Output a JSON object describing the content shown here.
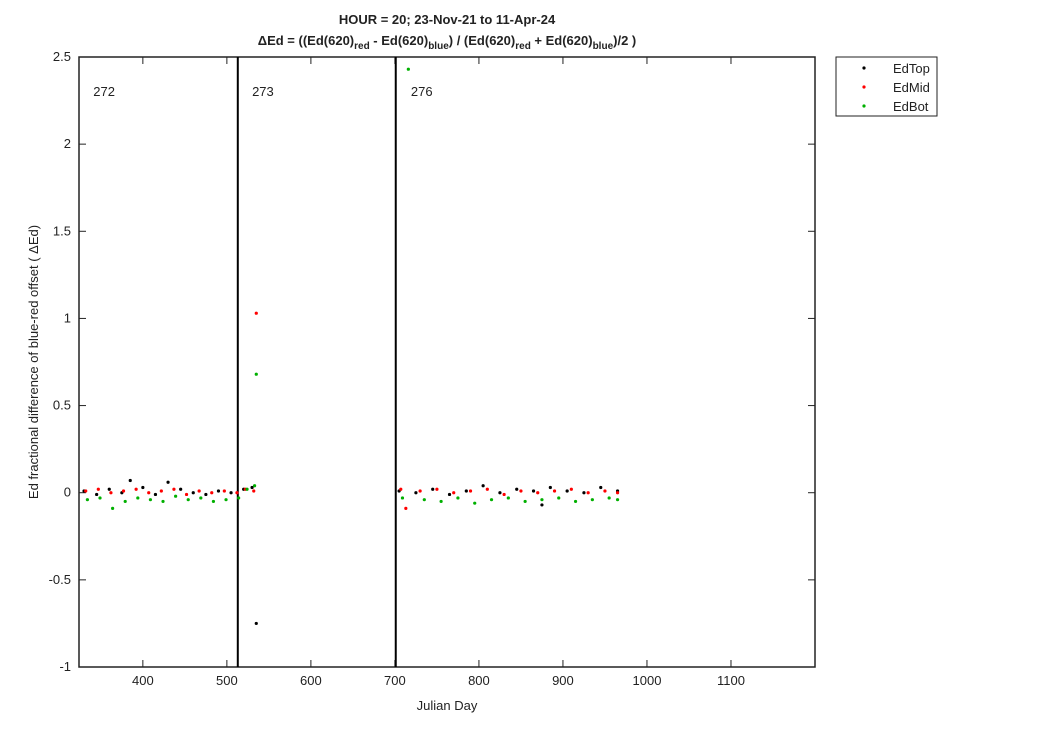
{
  "chart_data": {
    "type": "scatter",
    "title": "HOUR = 20; 23-Nov-21 to 11-Apr-24",
    "subtitle_parts": [
      {
        "text": "ΔEd = ((Ed(620)"
      },
      {
        "sub": "red"
      },
      {
        "text": " - Ed(620)"
      },
      {
        "sub": "blue"
      },
      {
        "text": ") / (Ed(620)"
      },
      {
        "sub": "red"
      },
      {
        "text": " + Ed(620)"
      },
      {
        "sub": "blue"
      },
      {
        "text": ")/2  )"
      }
    ],
    "x_label": "Julian Day",
    "y_label": "Ed fractional difference of blue-red offset (  ΔEd)",
    "xlim": [
      324,
      1200
    ],
    "xticks": [
      400,
      500,
      600,
      700,
      800,
      900,
      1000,
      1100
    ],
    "ylim": [
      -1,
      2.5
    ],
    "yticks": [
      -1,
      -0.5,
      0,
      0.5,
      1,
      1.5,
      2,
      2.5
    ],
    "vlines": [
      513,
      701
    ],
    "annotations": [
      {
        "text": "272",
        "x": 341,
        "y": 2.3
      },
      {
        "text": "273",
        "x": 530,
        "y": 2.3
      },
      {
        "text": "276",
        "x": 719,
        "y": 2.3
      }
    ],
    "legend": "outside-top-right",
    "series": [
      {
        "name": "EdTop",
        "color": "#000000",
        "x": [
          330,
          345,
          360,
          375,
          385,
          400,
          415,
          430,
          445,
          460,
          475,
          490,
          505,
          520,
          530,
          535,
          705,
          725,
          745,
          765,
          785,
          805,
          825,
          845,
          865,
          875,
          885,
          905,
          925,
          945,
          965
        ],
        "values": [
          0.01,
          -0.01,
          0.02,
          0.0,
          0.07,
          0.03,
          -0.01,
          0.06,
          0.02,
          0.0,
          -0.01,
          0.01,
          0.0,
          0.02,
          0.03,
          -0.75,
          0.01,
          0.0,
          0.02,
          -0.01,
          0.01,
          0.04,
          0.0,
          0.02,
          0.01,
          -0.07,
          0.03,
          0.01,
          0.0,
          0.03,
          0.01
        ]
      },
      {
        "name": "EdMid",
        "color": "#ff0000",
        "x": [
          332,
          347,
          362,
          377,
          392,
          407,
          422,
          437,
          452,
          467,
          482,
          497,
          512,
          522,
          532,
          535,
          707,
          713,
          730,
          750,
          770,
          790,
          810,
          830,
          850,
          870,
          890,
          910,
          930,
          950,
          965
        ],
        "values": [
          0.01,
          0.02,
          0.0,
          0.01,
          0.02,
          0.0,
          0.01,
          0.02,
          -0.01,
          0.01,
          0.0,
          0.01,
          0.0,
          0.02,
          0.01,
          1.03,
          0.02,
          -0.09,
          0.01,
          0.02,
          0.0,
          0.01,
          0.02,
          -0.01,
          0.01,
          0.0,
          0.01,
          0.02,
          0.0,
          0.01,
          0.0
        ]
      },
      {
        "name": "EdBot",
        "color": "#00b000",
        "x": [
          334,
          349,
          364,
          379,
          394,
          409,
          424,
          439,
          454,
          469,
          484,
          499,
          514,
          524,
          533,
          535,
          709,
          716,
          735,
          755,
          775,
          795,
          815,
          835,
          855,
          875,
          895,
          915,
          935,
          955,
          965
        ],
        "values": [
          -0.04,
          -0.03,
          -0.09,
          -0.05,
          -0.03,
          -0.04,
          -0.05,
          -0.02,
          -0.04,
          -0.03,
          -0.05,
          -0.04,
          -0.03,
          0.02,
          0.04,
          0.68,
          -0.03,
          2.43,
          -0.04,
          -0.05,
          -0.03,
          -0.06,
          -0.04,
          -0.03,
          -0.05,
          -0.04,
          -0.03,
          -0.05,
          -0.04,
          -0.03,
          -0.04
        ]
      }
    ]
  }
}
